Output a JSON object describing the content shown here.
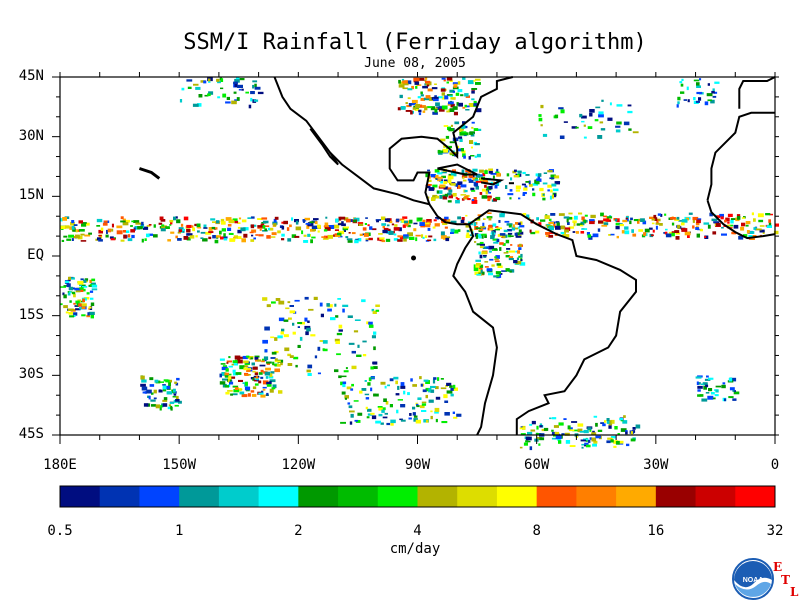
{
  "title": "SSM/I Rainfall (Ferriday algorithm)",
  "subtitle": "June 08, 2005",
  "lat_ticks": [
    "45N",
    "30N",
    "15N",
    "EQ",
    "15S",
    "30S",
    "45S"
  ],
  "lon_ticks": [
    "180E",
    "150W",
    "120W",
    "90W",
    "60W",
    "30W",
    "0"
  ],
  "colorbar": {
    "colors": [
      "#000d80",
      "#0033b3",
      "#0044ff",
      "#009999",
      "#00cccc",
      "#00ffff",
      "#009900",
      "#00bb00",
      "#00ee00",
      "#b3b300",
      "#dddd00",
      "#ffff00",
      "#ff5500",
      "#ff7f00",
      "#ffaa00",
      "#990000",
      "#cc0000",
      "#ff0000"
    ],
    "labels": [
      "0.5",
      "1",
      "2",
      "4",
      "8",
      "16",
      "32"
    ],
    "units": "cm/day"
  },
  "logo": {
    "name": "noaa-logo",
    "text": "NOAA",
    "letters": [
      "E",
      "T",
      "L"
    ]
  }
}
